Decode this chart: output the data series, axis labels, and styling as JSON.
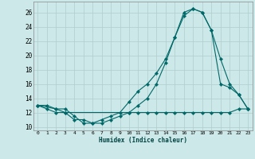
{
  "xlabel": "Humidex (Indice chaleur)",
  "bg_color": "#cce8e8",
  "grid_color": "#b0cccc",
  "line_color": "#006868",
  "xlim": [
    -0.5,
    23.5
  ],
  "ylim": [
    9.5,
    27.5
  ],
  "yticks": [
    10,
    12,
    14,
    16,
    18,
    20,
    22,
    24,
    26
  ],
  "xticks": [
    0,
    1,
    2,
    3,
    4,
    5,
    6,
    7,
    8,
    9,
    10,
    11,
    12,
    13,
    14,
    15,
    16,
    17,
    18,
    19,
    20,
    21,
    22,
    23
  ],
  "line1_x": [
    0,
    1,
    2,
    3,
    4,
    5,
    6,
    7,
    8,
    9,
    10,
    11,
    12,
    13,
    14,
    15,
    16,
    17,
    18,
    19,
    20,
    21,
    22,
    23
  ],
  "line1_y": [
    13,
    13,
    12.5,
    12.5,
    11.5,
    10.5,
    10.5,
    10.5,
    11,
    11.5,
    12,
    12,
    12,
    12,
    12,
    12,
    12,
    12,
    12,
    12,
    12,
    12,
    12.5,
    12.5
  ],
  "line2_x": [
    0,
    1,
    2,
    3,
    4,
    5,
    6,
    7,
    8,
    9,
    10,
    11,
    12,
    13,
    14,
    15,
    16,
    17,
    18,
    19,
    20,
    21,
    22,
    23
  ],
  "line2_y": [
    13,
    12.5,
    12,
    12,
    11,
    11,
    10.5,
    11,
    11.5,
    12,
    13.5,
    15,
    16,
    17.5,
    19.5,
    22.5,
    26,
    26.5,
    26,
    23.5,
    16,
    15.5,
    14.5,
    12.5
  ],
  "line3_x": [
    0,
    2,
    3,
    10,
    11,
    12,
    13,
    14,
    15,
    16,
    17,
    18,
    19,
    20,
    21,
    22,
    23
  ],
  "line3_y": [
    13,
    12.5,
    12,
    12,
    13,
    14,
    16,
    19,
    22.5,
    25.5,
    26.5,
    26,
    23.5,
    19.5,
    16,
    14.5,
    12.5
  ]
}
